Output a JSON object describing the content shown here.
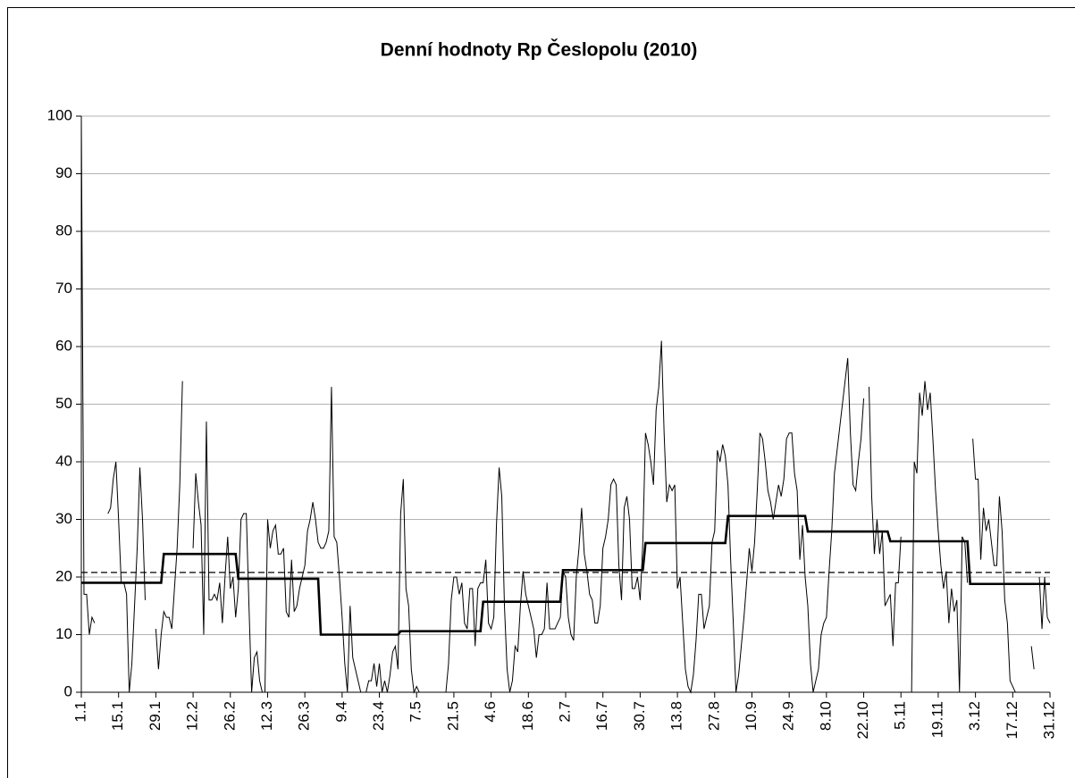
{
  "chart_data": {
    "type": "line",
    "title": "Denní hodnoty Rp Česlopolu (2010)",
    "xlim": [
      0,
      364
    ],
    "xticks": [
      {
        "value": 0,
        "label": "1.1"
      },
      {
        "value": 14,
        "label": "15.1"
      },
      {
        "value": 28,
        "label": "29.1"
      },
      {
        "value": 42,
        "label": "12.2"
      },
      {
        "value": 56,
        "label": "26.2"
      },
      {
        "value": 70,
        "label": "12.3"
      },
      {
        "value": 84,
        "label": "26.3"
      },
      {
        "value": 98,
        "label": "9.4"
      },
      {
        "value": 112,
        "label": "23.4"
      },
      {
        "value": 126,
        "label": "7.5"
      },
      {
        "value": 140,
        "label": "21.5"
      },
      {
        "value": 154,
        "label": "4.6"
      },
      {
        "value": 168,
        "label": "18.6"
      },
      {
        "value": 182,
        "label": "2.7"
      },
      {
        "value": 196,
        "label": "16.7"
      },
      {
        "value": 210,
        "label": "30.7"
      },
      {
        "value": 224,
        "label": "13.8"
      },
      {
        "value": 238,
        "label": "27.8"
      },
      {
        "value": 252,
        "label": "10.9"
      },
      {
        "value": 266,
        "label": "24.9"
      },
      {
        "value": 280,
        "label": "8.10"
      },
      {
        "value": 294,
        "label": "22.10"
      },
      {
        "value": 308,
        "label": "5.11"
      },
      {
        "value": 322,
        "label": "19.11"
      },
      {
        "value": 336,
        "label": "3.12"
      },
      {
        "value": 350,
        "label": "17.12"
      },
      {
        "value": 364,
        "label": "31.12"
      }
    ],
    "ylim": [
      0,
      100
    ],
    "yticks": [
      0,
      10,
      20,
      30,
      40,
      50,
      60,
      70,
      80,
      90,
      100
    ],
    "grid": true,
    "series": [
      {
        "color": "#000000",
        "style": "thin",
        "values": [
          100,
          17,
          17,
          10,
          13,
          12,
          null,
          null,
          null,
          null,
          31,
          32,
          37,
          40,
          30,
          19,
          19,
          17,
          0,
          5,
          15,
          25,
          39,
          30,
          16,
          null,
          null,
          null,
          11,
          4,
          10,
          14,
          13,
          13,
          11,
          18,
          25,
          36,
          54,
          null,
          null,
          null,
          25,
          38,
          33,
          29,
          10,
          47,
          16,
          16,
          17,
          16,
          19,
          12,
          20,
          27,
          18,
          20,
          13,
          18,
          30,
          31,
          31,
          15,
          0,
          6,
          7,
          2,
          0,
          0,
          30,
          25,
          28,
          29,
          24,
          24,
          25,
          14,
          13,
          23,
          14,
          15,
          18,
          20,
          22,
          28,
          30,
          33,
          30,
          26,
          25,
          25,
          26,
          28,
          53,
          27,
          26,
          20,
          13,
          5,
          0,
          15,
          6,
          4,
          2,
          0,
          0,
          0,
          2,
          2,
          5,
          1,
          5,
          0,
          2,
          0,
          3,
          7,
          8,
          4,
          31,
          37,
          18,
          15,
          4,
          0,
          1,
          0,
          0,
          0,
          0,
          0,
          0,
          0,
          0,
          0,
          0,
          0,
          5,
          16,
          20,
          20,
          17,
          19,
          12,
          11,
          18,
          18,
          8,
          18,
          19,
          19,
          23,
          12,
          11,
          13,
          29,
          39,
          34,
          15,
          4,
          0,
          2,
          8,
          7,
          15,
          21,
          17,
          15,
          13,
          11,
          6,
          10,
          10,
          11,
          19,
          11,
          11,
          11,
          12,
          13,
          21,
          20,
          13,
          10,
          9,
          20,
          25,
          32,
          24,
          21,
          17,
          16,
          12,
          12,
          15,
          25,
          27,
          30,
          36,
          37,
          36,
          22,
          16,
          32,
          34,
          30,
          18,
          18,
          20,
          16,
          26,
          45,
          43,
          40,
          36,
          49,
          53,
          61,
          45,
          33,
          36,
          35,
          36,
          18,
          20,
          12,
          4,
          1,
          0,
          3,
          9,
          17,
          17,
          11,
          13,
          15,
          26,
          28,
          42,
          40,
          43,
          41,
          36,
          23,
          12,
          0,
          3,
          8,
          13,
          19,
          25,
          21,
          26,
          35,
          45,
          44,
          40,
          35,
          33,
          30,
          33,
          36,
          34,
          37,
          44,
          45,
          45,
          38,
          35,
          23,
          29,
          20,
          15,
          5,
          0,
          2,
          4,
          10,
          12,
          13,
          21,
          28,
          38,
          42,
          46,
          50,
          54,
          58,
          45,
          36,
          35,
          40,
          44,
          51,
          null,
          53,
          34,
          24,
          30,
          24,
          28,
          15,
          16,
          17,
          8,
          19,
          19,
          27,
          null,
          null,
          null,
          0,
          40,
          38,
          52,
          48,
          54,
          49,
          52,
          44,
          35,
          28,
          22,
          18,
          21,
          12,
          18,
          14,
          16,
          0,
          27,
          26,
          19,
          null,
          44,
          37,
          37,
          23,
          32,
          28,
          30,
          26,
          22,
          22,
          34,
          28,
          16,
          12,
          2,
          1,
          0,
          0,
          null,
          null,
          null,
          null,
          8,
          4,
          null,
          20,
          11,
          20,
          13,
          12
        ]
      },
      {
        "color": "#000000",
        "style": "step",
        "x": [
          0,
          31,
          59,
          90,
          120,
          151,
          181,
          212,
          243,
          273,
          304,
          334
        ],
        "values": [
          19,
          24,
          19.7,
          10,
          10.6,
          15.7,
          21.2,
          25.9,
          30.6,
          27.9,
          26.2,
          18.8
        ]
      }
    ],
    "annual_mean": 20.8
  }
}
